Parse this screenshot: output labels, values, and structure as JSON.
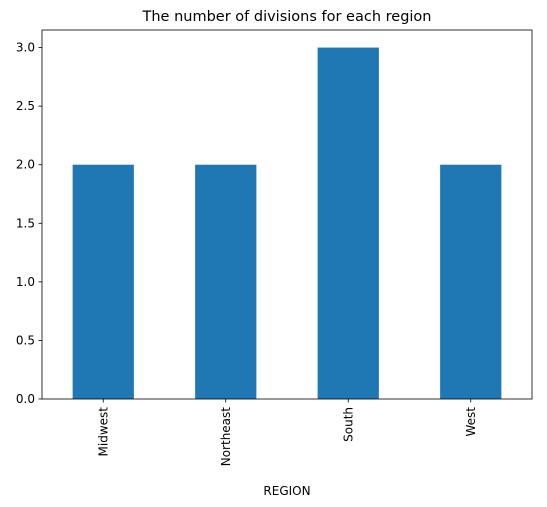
{
  "chart_data": {
    "type": "bar",
    "title": "The number of divisions for each region",
    "xlabel": "REGION",
    "ylabel": "",
    "categories": [
      "Midwest",
      "Northeast",
      "South",
      "West"
    ],
    "values": [
      2,
      2,
      3,
      2
    ],
    "ylim": [
      0,
      3.15
    ],
    "yticks": [
      "0.0",
      "0.5",
      "1.0",
      "1.5",
      "2.0",
      "2.5",
      "3.0"
    ],
    "ytick_values": [
      0,
      0.5,
      1.0,
      1.5,
      2.0,
      2.5,
      3.0
    ],
    "bar_color": "#1f77b4",
    "grid": false,
    "legend": false
  }
}
